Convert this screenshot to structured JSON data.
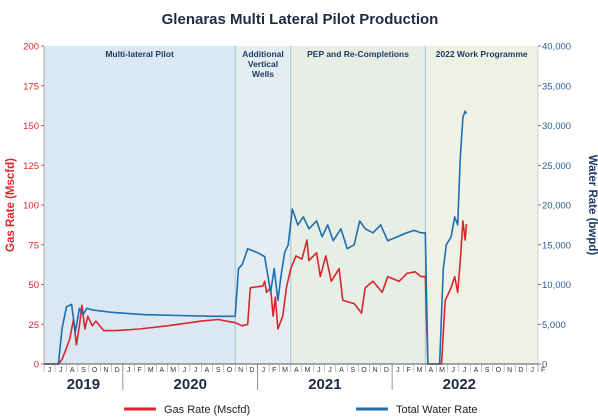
{
  "chart_data": {
    "type": "line",
    "title": "Glenaras Multi Lateral Pilot Production",
    "y_left": {
      "label": "Gas Rate (Mscfd)",
      "range": [
        0,
        200
      ],
      "ticks": [
        0,
        25,
        50,
        75,
        100,
        125,
        150,
        175,
        200
      ],
      "tick_labels": [
        "0",
        "25",
        "50",
        "75",
        "100",
        "125",
        "150",
        "175",
        "200"
      ],
      "color": "#d9262c"
    },
    "y_right": {
      "label": "Water Rate (bwpd)",
      "range": [
        0,
        40000
      ],
      "ticks": [
        0,
        5000,
        10000,
        15000,
        20000,
        25000,
        30000,
        35000,
        40000
      ],
      "tick_labels": [
        "0",
        "5,000",
        "10,000",
        "15,000",
        "20,000",
        "25,000",
        "30,000",
        "35,000",
        "40,000"
      ],
      "color": "#1f6fb0"
    },
    "x_axis": {
      "start": "2019-06",
      "end": "2023-02",
      "month_labels": [
        "J",
        "J",
        "A",
        "S",
        "O",
        "N",
        "D",
        "J",
        "F",
        "M",
        "A",
        "M",
        "J",
        "J",
        "A",
        "S",
        "O",
        "N",
        "D",
        "J",
        "F",
        "M",
        "A",
        "M",
        "J",
        "J",
        "A",
        "S",
        "O",
        "N",
        "D",
        "J",
        "F",
        "M",
        "A",
        "M",
        "J",
        "J",
        "A",
        "S",
        "O",
        "N",
        "D",
        "J",
        "F"
      ],
      "years": [
        {
          "label": "2019",
          "from": "2019-06",
          "to": "2020-01"
        },
        {
          "label": "2020",
          "from": "2020-01",
          "to": "2021-01"
        },
        {
          "label": "2021",
          "from": "2021-01",
          "to": "2022-01"
        },
        {
          "label": "2022",
          "from": "2022-01",
          "to": "2023-01"
        }
      ]
    },
    "phases": [
      {
        "label": "Multi-lateral Pilot",
        "from": "2019-06",
        "to": "2020-11",
        "color": "#dbe8f3"
      },
      {
        "label": "Additional Vertical Wells",
        "from": "2020-11",
        "to": "2021-04",
        "color": "#e3edf2"
      },
      {
        "label": "PEP and Re-Completions",
        "from": "2021-04",
        "to": "2022-04",
        "color": "#e6eee6"
      },
      {
        "label": "2022 Work Programme",
        "from": "2022-04",
        "to": "2023-02",
        "color": "#edf2e4"
      }
    ],
    "series": [
      {
        "name": "Gas Rate (Mscfd)",
        "axis": "left",
        "color": "#d9262c",
        "points": [
          [
            "2019-06-01",
            0
          ],
          [
            "2019-07-10",
            0
          ],
          [
            "2019-07-20",
            3
          ],
          [
            "2019-08-01",
            10
          ],
          [
            "2019-08-10",
            16
          ],
          [
            "2019-08-20",
            28
          ],
          [
            "2019-08-28",
            12
          ],
          [
            "2019-09-05",
            24
          ],
          [
            "2019-09-12",
            37
          ],
          [
            "2019-09-20",
            22
          ],
          [
            "2019-09-28",
            30
          ],
          [
            "2019-10-10",
            24
          ],
          [
            "2019-10-20",
            27
          ],
          [
            "2019-11-10",
            21
          ],
          [
            "2019-12-15",
            21
          ],
          [
            "2020-02-15",
            22
          ],
          [
            "2020-05-01",
            24
          ],
          [
            "2020-08-01",
            27
          ],
          [
            "2020-09-15",
            28
          ],
          [
            "2020-11-01",
            26
          ],
          [
            "2020-11-20",
            24
          ],
          [
            "2020-12-05",
            25
          ],
          [
            "2020-12-12",
            48
          ],
          [
            "2021-01-15",
            49
          ],
          [
            "2021-01-20",
            52
          ],
          [
            "2021-01-25",
            45
          ],
          [
            "2021-02-05",
            48
          ],
          [
            "2021-02-12",
            30
          ],
          [
            "2021-02-18",
            42
          ],
          [
            "2021-02-25",
            22
          ],
          [
            "2021-03-10",
            30
          ],
          [
            "2021-03-20",
            48
          ],
          [
            "2021-04-01",
            60
          ],
          [
            "2021-04-15",
            68
          ],
          [
            "2021-05-01",
            66
          ],
          [
            "2021-05-15",
            78
          ],
          [
            "2021-05-20",
            65
          ],
          [
            "2021-06-10",
            70
          ],
          [
            "2021-06-20",
            55
          ],
          [
            "2021-07-05",
            68
          ],
          [
            "2021-07-20",
            52
          ],
          [
            "2021-08-10",
            60
          ],
          [
            "2021-08-20",
            40
          ],
          [
            "2021-09-20",
            38
          ],
          [
            "2021-10-10",
            32
          ],
          [
            "2021-10-20",
            48
          ],
          [
            "2021-11-10",
            52
          ],
          [
            "2021-12-05",
            45
          ],
          [
            "2021-12-20",
            55
          ],
          [
            "2022-01-20",
            52
          ],
          [
            "2022-02-10",
            57
          ],
          [
            "2022-03-05",
            58
          ],
          [
            "2022-03-20",
            55
          ],
          [
            "2022-04-01",
            55
          ],
          [
            "2022-04-08",
            0
          ],
          [
            "2022-05-15",
            0
          ],
          [
            "2022-05-25",
            40
          ],
          [
            "2022-06-10",
            48
          ],
          [
            "2022-06-20",
            55
          ],
          [
            "2022-06-28",
            45
          ],
          [
            "2022-07-05",
            65
          ],
          [
            "2022-07-12",
            90
          ],
          [
            "2022-07-18",
            78
          ],
          [
            "2022-07-22",
            88
          ]
        ]
      },
      {
        "name": "Total Water Rate",
        "axis": "right",
        "color": "#1f6fb0",
        "points": [
          [
            "2019-06-01",
            0
          ],
          [
            "2019-07-10",
            0
          ],
          [
            "2019-07-20",
            4500
          ],
          [
            "2019-08-01",
            7200
          ],
          [
            "2019-08-15",
            7500
          ],
          [
            "2019-08-25",
            4000
          ],
          [
            "2019-09-05",
            7000
          ],
          [
            "2019-09-15",
            6200
          ],
          [
            "2019-09-25",
            7000
          ],
          [
            "2019-10-10",
            6800
          ],
          [
            "2019-12-01",
            6500
          ],
          [
            "2020-03-01",
            6200
          ],
          [
            "2020-06-01",
            6100
          ],
          [
            "2020-09-01",
            6000
          ],
          [
            "2020-11-01",
            6000
          ],
          [
            "2020-11-10",
            12000
          ],
          [
            "2020-11-20",
            12500
          ],
          [
            "2020-12-05",
            14500
          ],
          [
            "2021-01-01",
            14000
          ],
          [
            "2021-01-20",
            13500
          ],
          [
            "2021-02-05",
            9000
          ],
          [
            "2021-02-15",
            12000
          ],
          [
            "2021-02-25",
            8000
          ],
          [
            "2021-03-05",
            11000
          ],
          [
            "2021-03-15",
            14000
          ],
          [
            "2021-03-25",
            15000
          ],
          [
            "2021-04-05",
            19500
          ],
          [
            "2021-04-20",
            17500
          ],
          [
            "2021-05-05",
            18500
          ],
          [
            "2021-05-20",
            17000
          ],
          [
            "2021-06-10",
            18000
          ],
          [
            "2021-06-25",
            16000
          ],
          [
            "2021-07-10",
            17500
          ],
          [
            "2021-07-25",
            15500
          ],
          [
            "2021-08-15",
            17000
          ],
          [
            "2021-09-01",
            14500
          ],
          [
            "2021-09-20",
            15000
          ],
          [
            "2021-10-05",
            18000
          ],
          [
            "2021-10-20",
            17000
          ],
          [
            "2021-11-10",
            16500
          ],
          [
            "2021-12-01",
            17500
          ],
          [
            "2021-12-20",
            15500
          ],
          [
            "2022-01-15",
            16000
          ],
          [
            "2022-02-10",
            16500
          ],
          [
            "2022-03-01",
            16800
          ],
          [
            "2022-03-20",
            16500
          ],
          [
            "2022-04-01",
            16500
          ],
          [
            "2022-04-08",
            0
          ],
          [
            "2022-05-10",
            0
          ],
          [
            "2022-05-20",
            12000
          ],
          [
            "2022-05-28",
            15000
          ],
          [
            "2022-06-10",
            16000
          ],
          [
            "2022-06-20",
            18500
          ],
          [
            "2022-06-28",
            17500
          ],
          [
            "2022-07-05",
            26000
          ],
          [
            "2022-07-12",
            31000
          ],
          [
            "2022-07-18",
            31800
          ],
          [
            "2022-07-22",
            31500
          ]
        ]
      }
    ],
    "legend": {
      "position": "bottom"
    },
    "grid": false
  }
}
